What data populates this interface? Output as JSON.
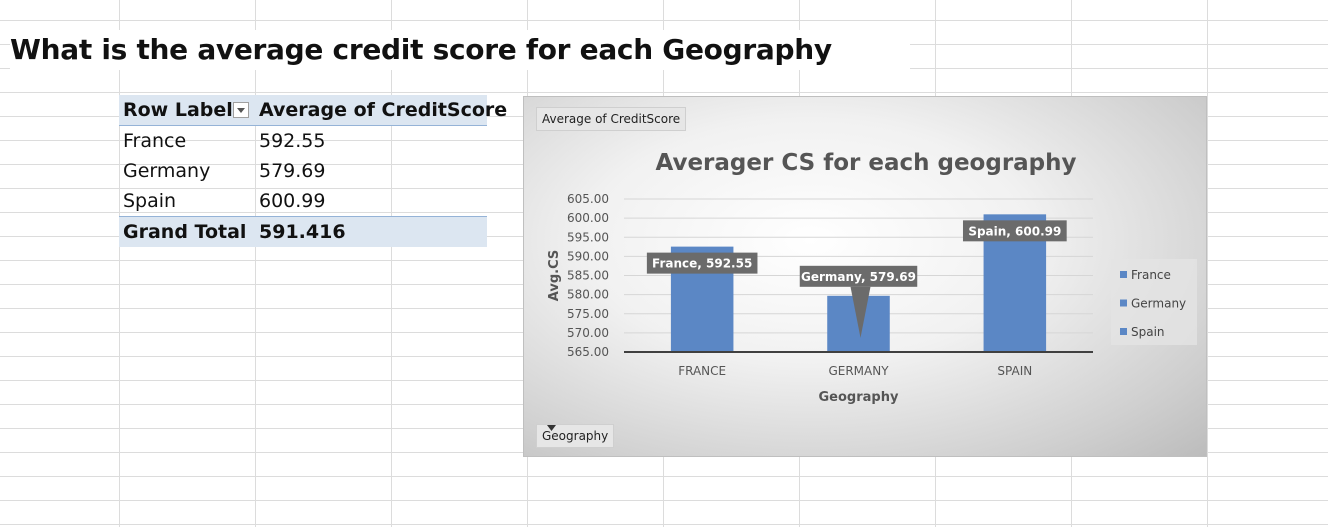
{
  "heading": "What is the average credit score for each Geography",
  "pivot": {
    "headers": [
      "Row Labels",
      "Average of CreditScore"
    ],
    "rows": [
      {
        "label": "France",
        "value": "592.55"
      },
      {
        "label": "Germany",
        "value": "579.69"
      },
      {
        "label": "Spain",
        "value": "600.99"
      }
    ],
    "total": {
      "label": "Grand Total",
      "value": "591.416"
    }
  },
  "field_buttons": {
    "value_field": "Average of CreditScore",
    "axis_field": "Geography"
  },
  "chart_data": {
    "type": "bar",
    "title": "Averager CS for each geography",
    "xlabel": "Geography",
    "ylabel": "Avg.CS",
    "categories": [
      "FRANCE",
      "GERMANY",
      "SPAIN"
    ],
    "values": [
      592.55,
      579.69,
      600.99
    ],
    "data_labels": [
      "France, 592.55",
      "Germany, 579.69",
      "Spain, 600.99"
    ],
    "y_ticks": [
      "565.00",
      "570.00",
      "575.00",
      "580.00",
      "585.00",
      "590.00",
      "595.00",
      "600.00",
      "605.00"
    ],
    "ylim": [
      565,
      605
    ],
    "grid": true,
    "legend": {
      "position": "right",
      "entries": [
        "France",
        "Germany",
        "Spain"
      ]
    },
    "colors": {
      "bar": "#5b87c5",
      "label_bg": "#6b6b6b",
      "axis": "#404040"
    }
  }
}
